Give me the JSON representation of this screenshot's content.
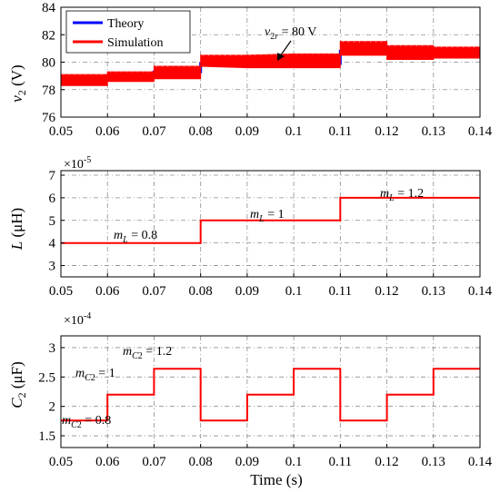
{
  "chart_data": [
    {
      "type": "line",
      "ylabel": "v_2 (V)",
      "xlim": [
        0.05,
        0.14
      ],
      "ylim": [
        76,
        84
      ],
      "xticks": [
        "0.05",
        "0.06",
        "0.07",
        "0.08",
        "0.09",
        "0.1",
        "0.11",
        "0.12",
        "0.13",
        "0.14"
      ],
      "yticks": [
        "76",
        "78",
        "80",
        "82",
        "84"
      ],
      "legend": {
        "placement": "top-left",
        "entries": [
          "Theory",
          "Simulation"
        ]
      },
      "annotation": {
        "text": "v_2r = 80 V",
        "points_to": [
          0.1,
          80.0
        ]
      },
      "grid": true,
      "series": [
        {
          "name": "Theory",
          "color": "#0000ff",
          "x": [
            0.05,
            0.06,
            0.06,
            0.07,
            0.07,
            0.08,
            0.08,
            0.11,
            0.11,
            0.12,
            0.12,
            0.13,
            0.13,
            0.14
          ],
          "y": [
            78.8,
            78.8,
            79.0,
            79.0,
            79.3,
            79.3,
            79.9,
            79.9,
            80.8,
            80.8,
            80.7,
            80.7,
            80.6,
            80.6
          ]
        },
        {
          "name": "Simulation",
          "color": "#ff0000",
          "x": [
            0.05,
            0.06,
            0.06,
            0.07,
            0.07,
            0.08,
            0.08,
            0.09,
            0.1,
            0.11,
            0.11,
            0.12,
            0.12,
            0.13,
            0.13,
            0.14
          ],
          "upper": [
            79.1,
            79.1,
            79.3,
            79.3,
            79.7,
            79.7,
            80.5,
            80.5,
            80.6,
            80.6,
            81.5,
            81.5,
            81.2,
            81.2,
            81.1,
            81.1
          ],
          "lower": [
            78.3,
            78.3,
            78.6,
            78.6,
            78.8,
            78.8,
            79.7,
            79.6,
            79.6,
            79.6,
            80.5,
            80.5,
            80.2,
            80.2,
            80.3,
            80.3
          ]
        }
      ]
    },
    {
      "type": "line",
      "ylabel": "L (μH)",
      "exponent_label": "×10^-5",
      "xlim": [
        0.05,
        0.14
      ],
      "ylim": [
        2.5,
        7.2
      ],
      "xticks": [
        "0.05",
        "0.06",
        "0.07",
        "0.08",
        "0.09",
        "0.1",
        "0.11",
        "0.12",
        "0.13",
        "0.14"
      ],
      "yticks": [
        "3",
        "4",
        "5",
        "6",
        "7"
      ],
      "grid": true,
      "annotations": [
        "m_L = 0.8",
        "m_L = 1",
        "m_L = 1.2"
      ],
      "series": [
        {
          "color": "#ff0000",
          "x": [
            0.05,
            0.08,
            0.08,
            0.11,
            0.11,
            0.14
          ],
          "y": [
            4,
            4,
            5,
            5,
            6,
            6
          ]
        }
      ]
    },
    {
      "type": "line",
      "ylabel": "C_2 (μF)",
      "exponent_label": "×10^-4",
      "xlim": [
        0.05,
        0.14
      ],
      "ylim": [
        1.3,
        3.2
      ],
      "xticks": [
        "0.05",
        "0.06",
        "0.07",
        "0.08",
        "0.09",
        "0.1",
        "0.11",
        "0.12",
        "0.13",
        "0.14"
      ],
      "xlabel": "Time (s)",
      "yticks": [
        "1.5",
        "2",
        "2.5",
        "3"
      ],
      "grid": true,
      "annotations": [
        "m_C2 = 0.8",
        "m_C2 = 1",
        "m_C2 = 1.2"
      ],
      "series": [
        {
          "color": "#ff0000",
          "x": [
            0.05,
            0.06,
            0.06,
            0.07,
            0.07,
            0.08,
            0.08,
            0.09,
            0.09,
            0.1,
            0.1,
            0.11,
            0.11,
            0.12,
            0.12,
            0.13,
            0.13,
            0.14
          ],
          "y": [
            1.76,
            1.76,
            2.2,
            2.2,
            2.64,
            2.64,
            1.76,
            1.76,
            2.2,
            2.2,
            2.64,
            2.64,
            1.76,
            1.76,
            2.2,
            2.2,
            2.64,
            2.64
          ]
        }
      ]
    }
  ]
}
